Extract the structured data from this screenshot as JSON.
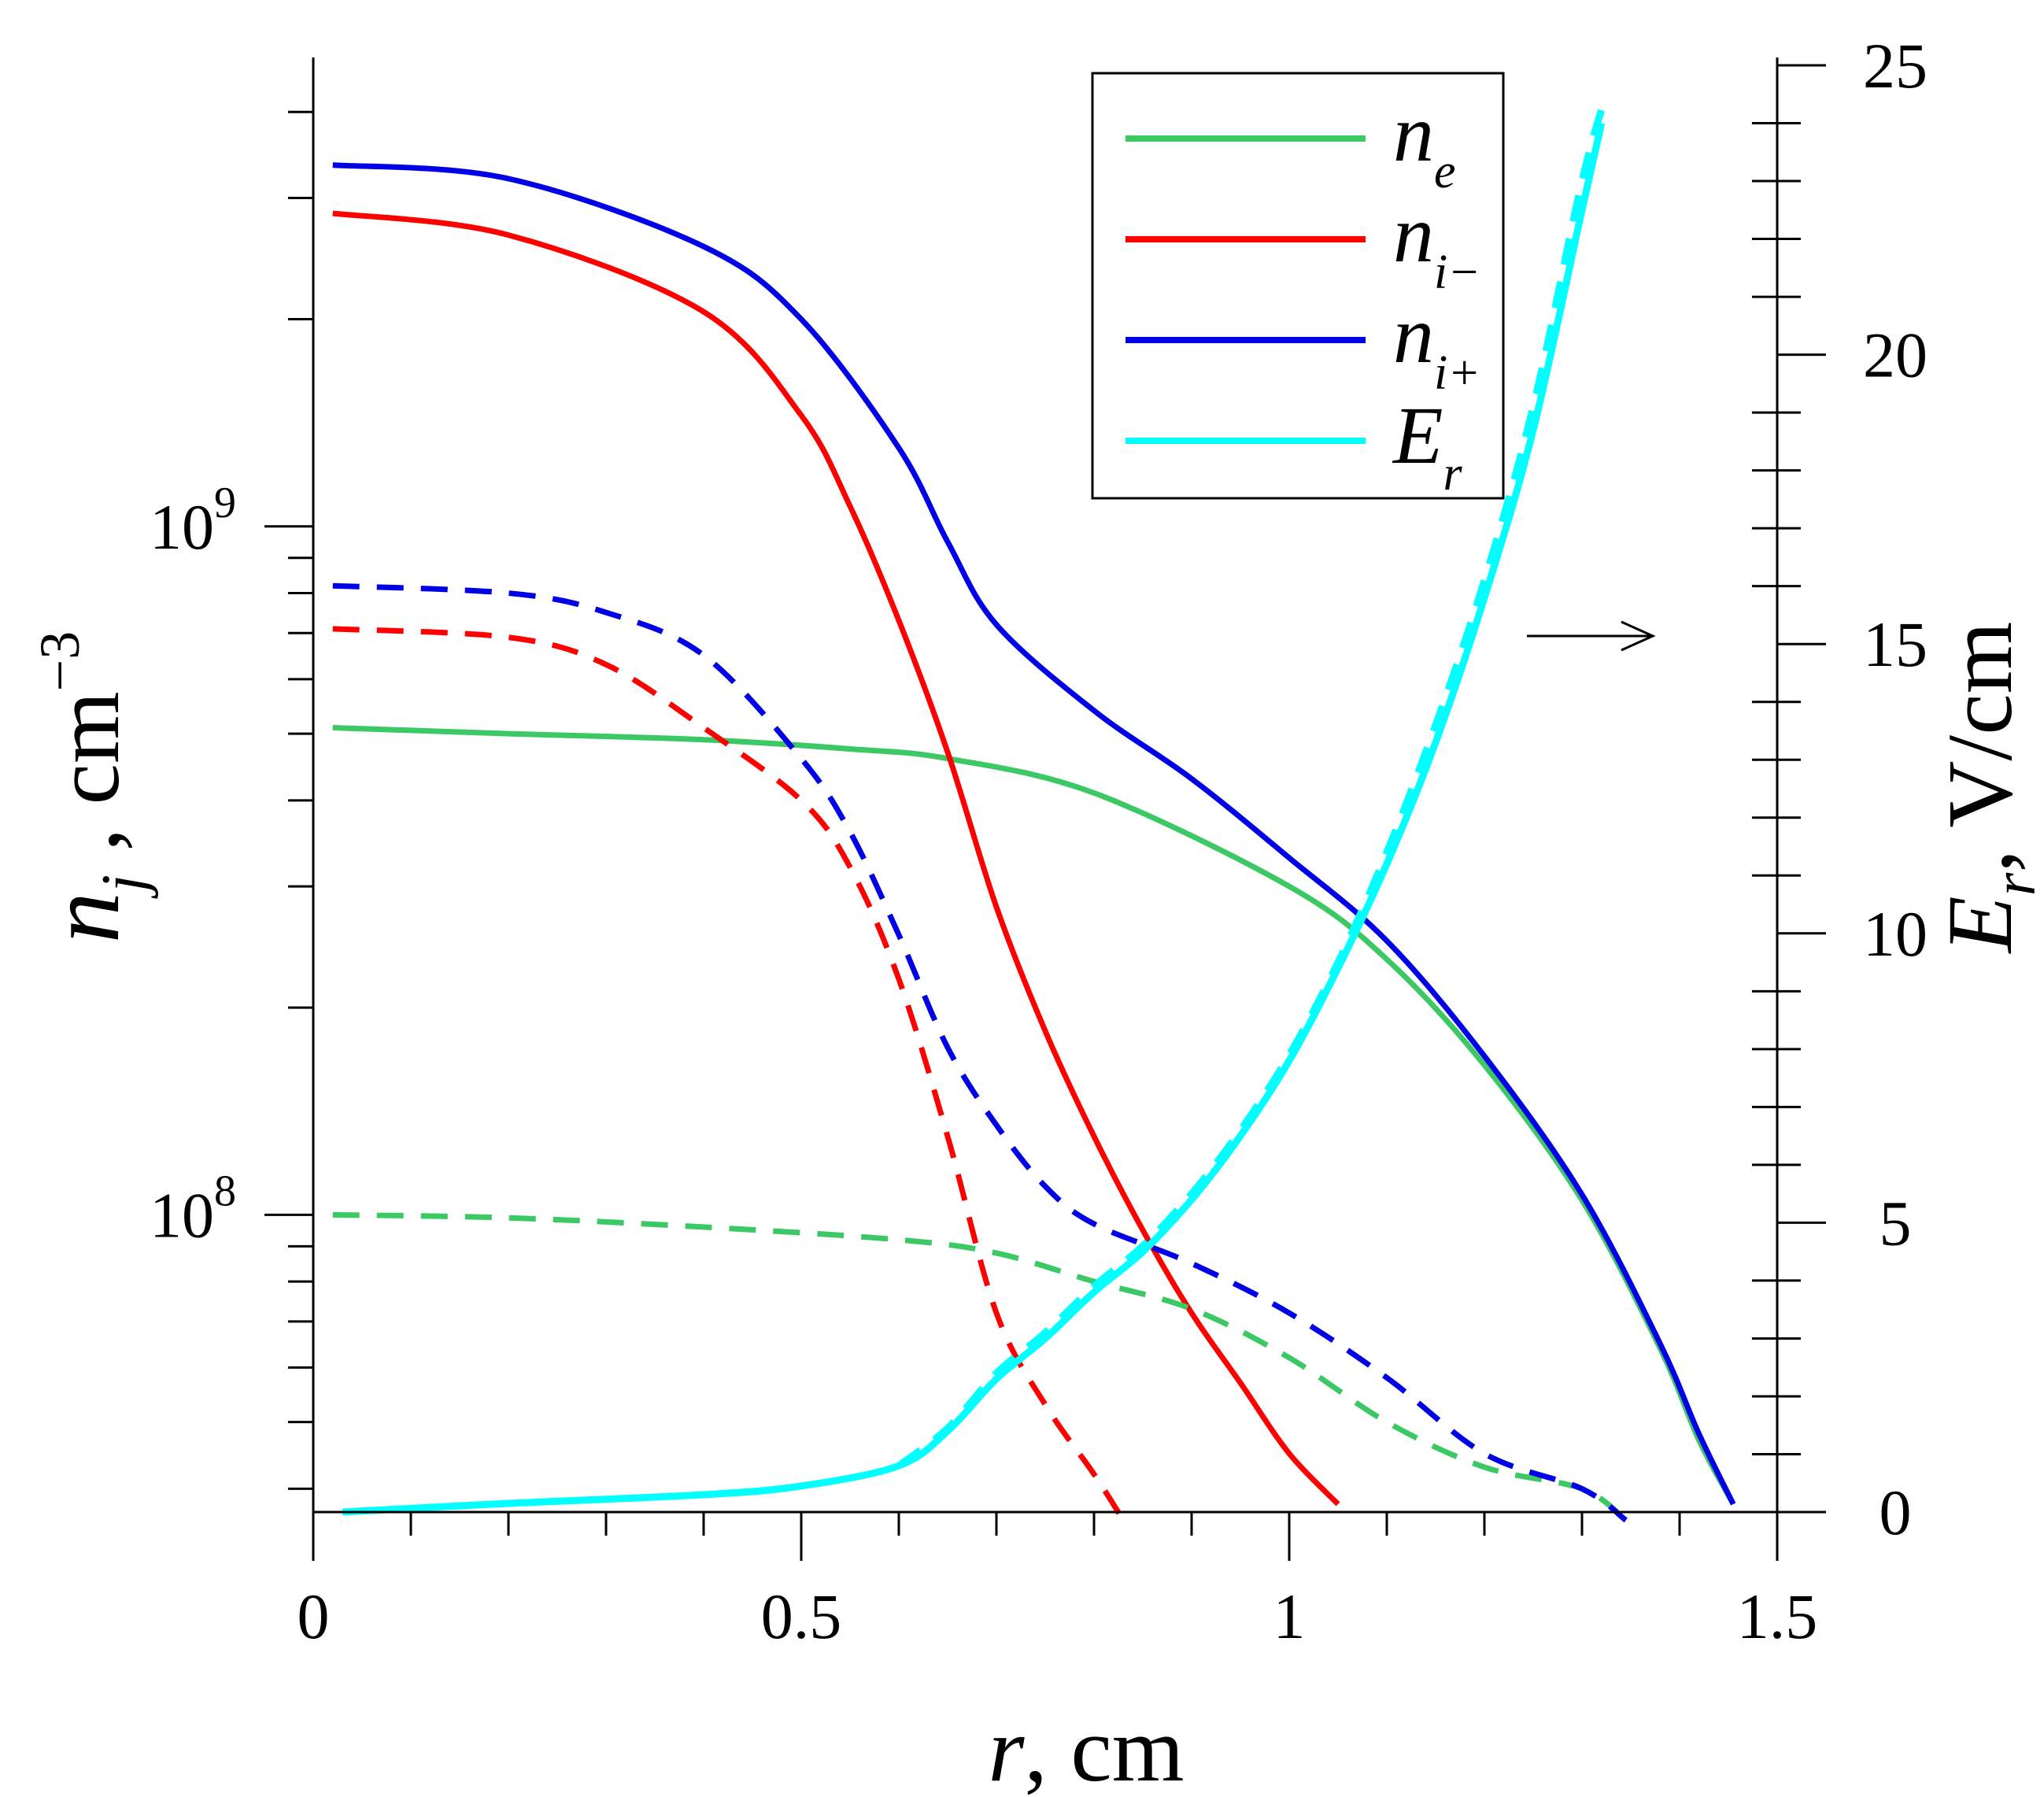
{
  "chart_data": {
    "type": "line",
    "title": "",
    "xlabel": {
      "symbol": "r",
      "rest": ", cm"
    },
    "ylabel_left": {
      "symbol": "n",
      "sub": "j",
      "rest": " , cm",
      "sup": "−3"
    },
    "ylabel_right": {
      "symbol": "E",
      "sub": "r",
      "rest": ", V/cm"
    },
    "xlim": [
      0,
      1.5
    ],
    "ylim_left": [
      37000000,
      4800000000
    ],
    "ylim_left_scale": "log",
    "ylim_right": [
      0,
      25
    ],
    "x_ticks": [
      {
        "value": 0,
        "label": "0"
      },
      {
        "value": 0.5,
        "label": "0.5"
      },
      {
        "value": 1,
        "label": "1"
      },
      {
        "value": 1.5,
        "label": "1.5"
      }
    ],
    "y_left_ticks": [
      {
        "value": 100000000,
        "base": "10",
        "exp": "8"
      },
      {
        "value": 1000000000,
        "base": "10",
        "exp": "9"
      }
    ],
    "y_right_ticks": [
      {
        "value": 0,
        "label": "0"
      },
      {
        "value": 5,
        "label": "5"
      },
      {
        "value": 10,
        "label": "10"
      },
      {
        "value": 15,
        "label": "15"
      },
      {
        "value": 20,
        "label": "20"
      },
      {
        "value": 25,
        "label": "25"
      }
    ],
    "legend": {
      "position": "top-right",
      "entries": [
        {
          "symbol": "n",
          "sub": "e",
          "color": "#3cc864"
        },
        {
          "symbol": "n",
          "sub": "i−",
          "color": "#ff0000"
        },
        {
          "symbol": "n",
          "sub": "i+",
          "color": "#0000e6"
        },
        {
          "symbol": "E",
          "sub": "r",
          "color": "#00ffff"
        }
      ]
    },
    "annotation": "arrow pointing right at E_r curve indicating right axis",
    "series": [
      {
        "name": "n_e (solid)",
        "axis": "left",
        "color": "#3cc864",
        "dashed": false,
        "x": [
          0.02,
          0.2,
          0.4,
          0.55,
          0.65,
          0.8,
          1.0,
          1.1,
          1.2,
          1.3,
          1.38,
          1.42,
          1.455
        ],
        "y": [
          510000000,
          500000000,
          490000000,
          475000000,
          460000000,
          410000000,
          300000000,
          235000000,
          165000000,
          105000000,
          64000000,
          47000000,
          38000000
        ]
      },
      {
        "name": "n_i- (solid)",
        "axis": "left",
        "color": "#ff0000",
        "dashed": false,
        "x": [
          0.02,
          0.2,
          0.4,
          0.5,
          0.55,
          0.6,
          0.65,
          0.7,
          0.75,
          0.8,
          0.85,
          0.9,
          0.95,
          1.0,
          1.05
        ],
        "y": [
          2850000000,
          2650000000,
          2050000000,
          1450000000,
          1070000000,
          730000000,
          470000000,
          280000000,
          185000000,
          130000000,
          95000000,
          72000000,
          57000000,
          45000000,
          38000000
        ]
      },
      {
        "name": "n_i+ (solid)",
        "axis": "left",
        "color": "#0000e6",
        "dashed": false,
        "x": [
          0.02,
          0.2,
          0.4,
          0.5,
          0.6,
          0.65,
          0.7,
          0.8,
          0.9,
          1.0,
          1.1,
          1.2,
          1.3,
          1.38,
          1.42,
          1.455
        ],
        "y": [
          3350000000,
          3200000000,
          2550000000,
          2000000000,
          1300000000,
          950000000,
          720000000,
          540000000,
          430000000,
          330000000,
          250000000,
          170000000,
          107000000,
          65000000,
          48000000,
          38000000
        ]
      },
      {
        "name": "n_e (dashed)",
        "axis": "left",
        "color": "#3cc864",
        "dashed": true,
        "x": [
          0.02,
          0.2,
          0.4,
          0.6,
          0.7,
          0.8,
          0.9,
          1.0,
          1.1,
          1.2,
          1.3,
          1.345
        ],
        "y": [
          100000000,
          99000000,
          96000000,
          92000000,
          88000000,
          80000000,
          73000000,
          62000000,
          50000000,
          43000000,
          40000000,
          36000000
        ]
      },
      {
        "name": "n_i- (dashed)",
        "axis": "left",
        "color": "#ff0000",
        "dashed": true,
        "x": [
          0.02,
          0.2,
          0.3,
          0.4,
          0.5,
          0.55,
          0.6,
          0.65,
          0.7,
          0.75,
          0.8,
          0.83
        ],
        "y": [
          710000000,
          690000000,
          630000000,
          510000000,
          400000000,
          320000000,
          220000000,
          130000000,
          72000000,
          53000000,
          42000000,
          36000000
        ]
      },
      {
        "name": "n_i+ (dashed)",
        "axis": "left",
        "color": "#0000e6",
        "dashed": true,
        "x": [
          0.02,
          0.2,
          0.3,
          0.4,
          0.5,
          0.55,
          0.6,
          0.65,
          0.7,
          0.75,
          0.8,
          0.9,
          1.0,
          1.1,
          1.2,
          1.3,
          1.345
        ],
        "y": [
          820000000,
          800000000,
          750000000,
          650000000,
          460000000,
          360000000,
          255000000,
          175000000,
          135000000,
          110000000,
          97000000,
          85000000,
          72000000,
          58000000,
          45000000,
          40000000,
          36000000
        ]
      },
      {
        "name": "E_r (solid)",
        "axis": "right",
        "color": "#00ffff",
        "dashed": false,
        "x": [
          0.03,
          0.2,
          0.4,
          0.5,
          0.6,
          0.65,
          0.7,
          0.75,
          0.8,
          0.85,
          0.9,
          0.95,
          1.0,
          1.05,
          1.1,
          1.15,
          1.2,
          1.25,
          1.3,
          1.32
        ],
        "y": [
          0,
          0.15,
          0.3,
          0.45,
          0.8,
          1.4,
          2.3,
          3.0,
          3.8,
          4.5,
          5.4,
          6.5,
          7.8,
          9.4,
          11.2,
          13.3,
          15.8,
          18.7,
          22.5,
          24.0
        ]
      },
      {
        "name": "E_r (dashed)",
        "axis": "right",
        "color": "#00ffff",
        "dashed": true,
        "x": [
          0.6,
          0.65,
          0.7,
          0.75,
          0.8,
          0.85,
          0.9,
          0.95,
          1.0,
          1.05,
          1.1,
          1.15,
          1.2,
          1.25,
          1.3,
          1.325
        ],
        "y": [
          0.8,
          1.45,
          2.4,
          3.1,
          3.9,
          4.6,
          5.5,
          6.6,
          7.9,
          9.5,
          11.4,
          13.6,
          16.1,
          19.1,
          23.0,
          24.5
        ]
      }
    ]
  }
}
